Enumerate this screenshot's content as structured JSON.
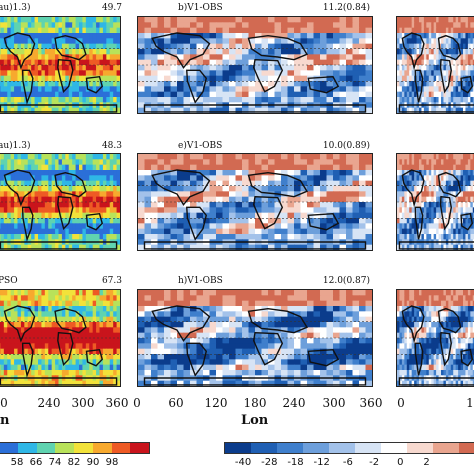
{
  "rows": [
    {
      "left": {
        "title": "au)1.3)",
        "value": "49.7",
        "field": "cloud"
      },
      "middle": {
        "title": "b)V1-OBS",
        "value": "11.2(0.84)",
        "field": "diff"
      },
      "right": {
        "title": "",
        "value": "",
        "field": "diff"
      }
    },
    {
      "left": {
        "title": "au)1.3)",
        "value": "48.3",
        "field": "cloud"
      },
      "middle": {
        "title": "e)V1-OBS",
        "value": "10.0(0.89)",
        "field": "diff"
      },
      "right": {
        "title": "",
        "value": "",
        "field": "diff"
      }
    },
    {
      "left": {
        "title": "PSO",
        "value": "67.3",
        "field": "cloud"
      },
      "middle": {
        "title": "h)V1-OBS",
        "value": "12.0(0.87)",
        "field": "diff"
      },
      "right": {
        "title": "",
        "value": "",
        "field": "diff"
      }
    }
  ],
  "xaxis": {
    "left_ticks": [
      "0",
      "240",
      "300",
      "360"
    ],
    "middle_ticks": [
      "0",
      "60",
      "120",
      "180",
      "240",
      "300",
      "360"
    ],
    "right_ticks": [
      "0",
      "1"
    ],
    "left_label": "n",
    "middle_label": "Lon"
  },
  "colorbar_left": {
    "labels": [
      "58",
      "66",
      "74",
      "82",
      "90",
      "98"
    ],
    "colors": [
      "#2b6fd8",
      "#2fb7e6",
      "#5fd3b0",
      "#b8e25a",
      "#f2e23a",
      "#f7a92e",
      "#ee5a24",
      "#c9141c"
    ]
  },
  "colorbar_right": {
    "labels": [
      "-40",
      "-28",
      "-18",
      "-12",
      "-6",
      "-2",
      "0",
      "2"
    ],
    "colors": [
      "#0b3c8c",
      "#1f5fb3",
      "#3f7fcc",
      "#6d9fdb",
      "#a3c2ea",
      "#d7e4f5",
      "#ffffff",
      "#f7d9cf",
      "#e9a58f",
      "#d26a52"
    ]
  }
}
